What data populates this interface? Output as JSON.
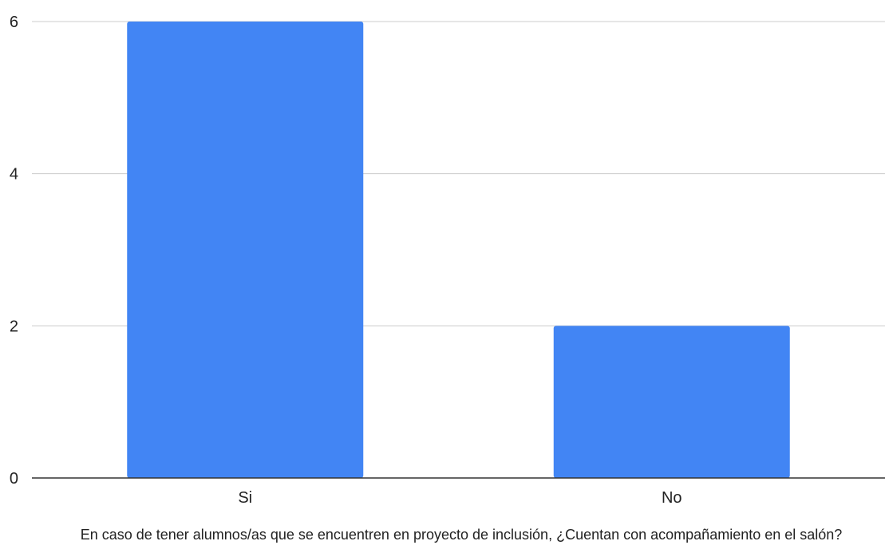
{
  "chart_data": {
    "type": "bar",
    "categories": [
      "Si",
      "No"
    ],
    "series": [
      {
        "values": [
          6,
          2
        ]
      }
    ],
    "title": "",
    "xlabel": "En caso de tener alumnos/as que se encuentren en proyecto de inclusión, ¿Cuentan con acompañamiento en el salón?",
    "ylabel": "",
    "ylim": [
      0,
      6
    ],
    "yticks": [
      0,
      2,
      4,
      6
    ],
    "grid": true,
    "legend": "none",
    "colors": {
      "bar": "#4285f4",
      "grid": "#cccccc",
      "axis": "#333333"
    }
  }
}
